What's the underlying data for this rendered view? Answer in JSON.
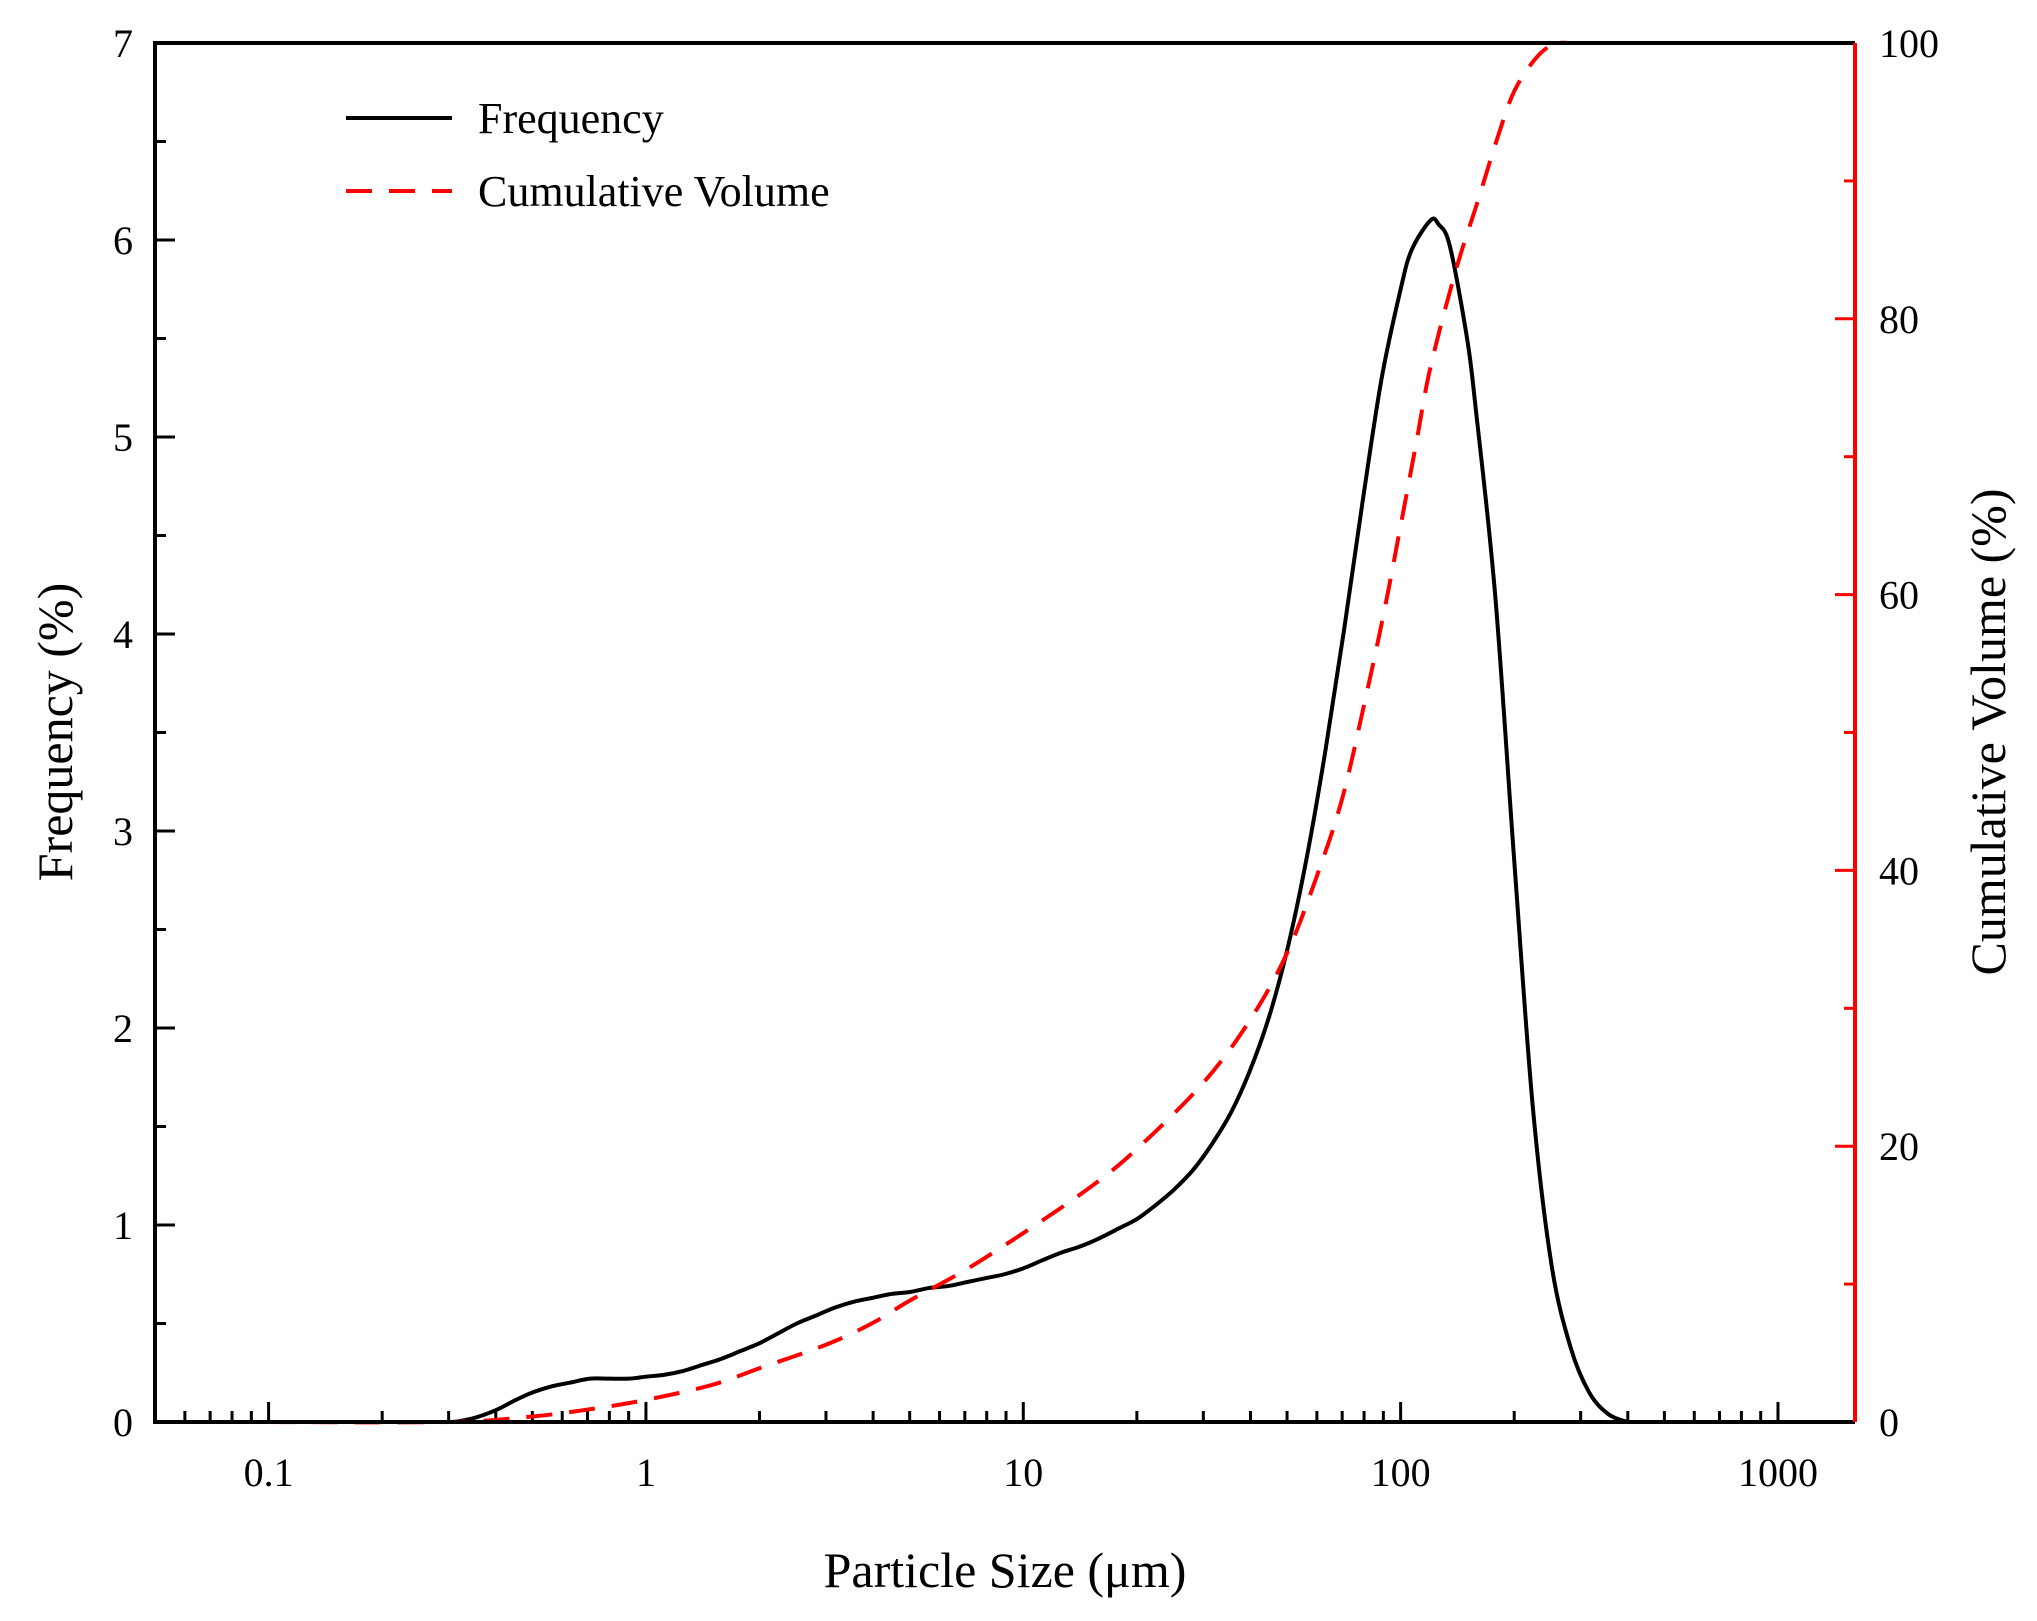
{
  "chart_data": {
    "type": "line",
    "xlabel": "Particle Size (μm)",
    "ylabel": "Frequency (%)",
    "y2label": "Cumulative Volume (%)",
    "xscale": "log",
    "xlim": [
      0.05,
      1600
    ],
    "ylim": [
      0,
      7
    ],
    "y2lim": [
      0,
      100
    ],
    "x_ticks": [
      {
        "value": 0.1,
        "label": "0.1"
      },
      {
        "value": 1,
        "label": "1"
      },
      {
        "value": 10,
        "label": "10"
      },
      {
        "value": 100,
        "label": "100"
      },
      {
        "value": 1000,
        "label": "1000"
      }
    ],
    "y_ticks": [
      {
        "value": 0,
        "label": "0"
      },
      {
        "value": 1,
        "label": "1"
      },
      {
        "value": 2,
        "label": "2"
      },
      {
        "value": 3,
        "label": "3"
      },
      {
        "value": 4,
        "label": "4"
      },
      {
        "value": 5,
        "label": "5"
      },
      {
        "value": 6,
        "label": "6"
      },
      {
        "value": 7,
        "label": "7"
      }
    ],
    "y2_ticks": [
      {
        "value": 0,
        "label": "0"
      },
      {
        "value": 20,
        "label": "20"
      },
      {
        "value": 40,
        "label": "40"
      },
      {
        "value": 60,
        "label": "60"
      },
      {
        "value": 80,
        "label": "80"
      },
      {
        "value": 100,
        "label": "100"
      }
    ],
    "legend_position": "top-left",
    "colors": {
      "frequency": "#000000",
      "cumulative": "#ff0000",
      "right_axis": "#ff0000"
    },
    "series": [
      {
        "name": "Frequency",
        "axis": "left",
        "style": "solid",
        "points": [
          [
            0.31,
            0.0
          ],
          [
            0.35,
            0.02
          ],
          [
            0.4,
            0.06
          ],
          [
            0.45,
            0.11
          ],
          [
            0.5,
            0.15
          ],
          [
            0.56,
            0.18
          ],
          [
            0.63,
            0.2
          ],
          [
            0.71,
            0.22
          ],
          [
            0.8,
            0.22
          ],
          [
            0.9,
            0.22
          ],
          [
            1.0,
            0.23
          ],
          [
            1.12,
            0.24
          ],
          [
            1.26,
            0.26
          ],
          [
            1.41,
            0.29
          ],
          [
            1.58,
            0.32
          ],
          [
            1.78,
            0.36
          ],
          [
            2.0,
            0.4
          ],
          [
            2.24,
            0.45
          ],
          [
            2.51,
            0.5
          ],
          [
            2.82,
            0.54
          ],
          [
            3.16,
            0.58
          ],
          [
            3.55,
            0.61
          ],
          [
            3.98,
            0.63
          ],
          [
            4.47,
            0.65
          ],
          [
            5.01,
            0.66
          ],
          [
            5.62,
            0.68
          ],
          [
            6.31,
            0.69
          ],
          [
            7.08,
            0.71
          ],
          [
            7.94,
            0.73
          ],
          [
            8.91,
            0.75
          ],
          [
            10.0,
            0.78
          ],
          [
            11.2,
            0.82
          ],
          [
            12.6,
            0.86
          ],
          [
            14.1,
            0.89
          ],
          [
            15.8,
            0.93
          ],
          [
            17.8,
            0.98
          ],
          [
            20.0,
            1.03
          ],
          [
            22.4,
            1.1
          ],
          [
            25.1,
            1.18
          ],
          [
            28.2,
            1.28
          ],
          [
            31.6,
            1.41
          ],
          [
            35.5,
            1.57
          ],
          [
            39.8,
            1.78
          ],
          [
            44.7,
            2.05
          ],
          [
            50.1,
            2.4
          ],
          [
            56.2,
            2.85
          ],
          [
            63.1,
            3.4
          ],
          [
            70.8,
            4.02
          ],
          [
            79.4,
            4.68
          ],
          [
            89.1,
            5.3
          ],
          [
            100,
            5.75
          ],
          [
            107,
            5.95
          ],
          [
            120,
            6.1
          ],
          [
            126,
            6.08
          ],
          [
            135,
            5.97
          ],
          [
            150,
            5.5
          ],
          [
            158,
            5.15
          ],
          [
            178,
            4.2
          ],
          [
            200,
            2.85
          ],
          [
            224,
            1.6
          ],
          [
            251,
            0.8
          ],
          [
            282,
            0.38
          ],
          [
            316,
            0.15
          ],
          [
            355,
            0.04
          ],
          [
            398,
            0.0
          ]
        ]
      },
      {
        "name": "Cumulative Volume",
        "axis": "right",
        "style": "dashed",
        "points": [
          [
            0.1,
            0.0
          ],
          [
            0.3,
            0.0
          ],
          [
            0.5,
            0.4
          ],
          [
            0.7,
            0.9
          ],
          [
            1.0,
            1.6
          ],
          [
            1.5,
            2.7
          ],
          [
            2.0,
            3.9
          ],
          [
            3.0,
            5.6
          ],
          [
            4.0,
            7.2
          ],
          [
            5.0,
            8.8
          ],
          [
            7.0,
            11.0
          ],
          [
            10.0,
            13.7
          ],
          [
            15.0,
            17.0
          ],
          [
            20.0,
            19.8
          ],
          [
            30.0,
            24.6
          ],
          [
            40.0,
            29.2
          ],
          [
            50.0,
            34.0
          ],
          [
            60.0,
            39.6
          ],
          [
            70.0,
            45.2
          ],
          [
            80.0,
            52.0
          ],
          [
            90.0,
            58.5
          ],
          [
            100,
            65.0
          ],
          [
            110,
            71.0
          ],
          [
            120,
            76.5
          ],
          [
            140,
            83.5
          ],
          [
            160,
            88.5
          ],
          [
            180,
            93.0
          ],
          [
            200,
            96.5
          ],
          [
            230,
            99.0
          ],
          [
            260,
            100.0
          ],
          [
            300,
            100.0
          ],
          [
            1000,
            100.0
          ]
        ]
      }
    ]
  }
}
